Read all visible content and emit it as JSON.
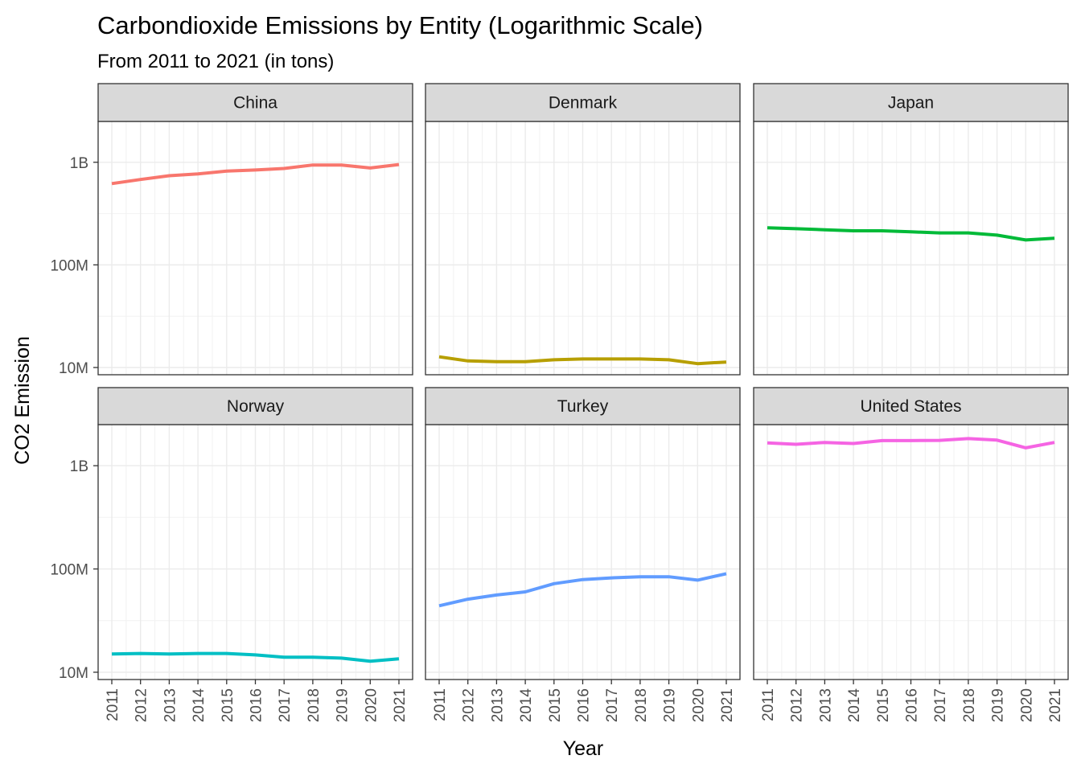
{
  "chart_data": {
    "type": "line",
    "title": "Carbondioxide Emissions by Entity (Logarithmic Scale)",
    "subtitle": "From 2011 to 2021 (in tons)",
    "xlabel": "Year",
    "ylabel": "CO2 Emission",
    "y_scale": "log10",
    "ylim": [
      8500000,
      2500000000
    ],
    "y_ticks": [
      {
        "value": 10000000,
        "label": "10M"
      },
      {
        "value": 100000000,
        "label": "100M"
      },
      {
        "value": 1000000000,
        "label": "1B"
      }
    ],
    "x": [
      "2011",
      "2012",
      "2013",
      "2014",
      "2015",
      "2016",
      "2017",
      "2018",
      "2019",
      "2020",
      "2021"
    ],
    "grid": true,
    "legend": "none",
    "layout": "facet grid, 2 rows x 3 columns",
    "series": [
      {
        "name": "China",
        "color": "#F8766D",
        "values": [
          620000000,
          680000000,
          740000000,
          770000000,
          820000000,
          840000000,
          870000000,
          940000000,
          940000000,
          880000000,
          950000000
        ]
      },
      {
        "name": "Denmark",
        "color": "#B79F00",
        "values": [
          12700000,
          11600000,
          11400000,
          11400000,
          11900000,
          12100000,
          12100000,
          12100000,
          11900000,
          10900000,
          11300000
        ]
      },
      {
        "name": "Japan",
        "color": "#00BA38",
        "values": [
          230000000,
          225000000,
          220000000,
          215000000,
          215000000,
          210000000,
          205000000,
          205000000,
          195000000,
          175000000,
          182000000
        ]
      },
      {
        "name": "Norway",
        "color": "#00BFC4",
        "values": [
          15000000,
          15200000,
          15000000,
          15200000,
          15200000,
          14700000,
          14000000,
          14000000,
          13700000,
          12800000,
          13500000
        ]
      },
      {
        "name": "Turkey",
        "color": "#619CFF",
        "values": [
          44000000,
          51000000,
          56000000,
          60000000,
          72000000,
          79000000,
          82000000,
          84000000,
          84000000,
          78000000,
          90000000
        ]
      },
      {
        "name": "United States",
        "color": "#F564E3",
        "values": [
          1660000000,
          1610000000,
          1680000000,
          1640000000,
          1750000000,
          1750000000,
          1760000000,
          1830000000,
          1770000000,
          1490000000,
          1680000000
        ]
      }
    ]
  }
}
